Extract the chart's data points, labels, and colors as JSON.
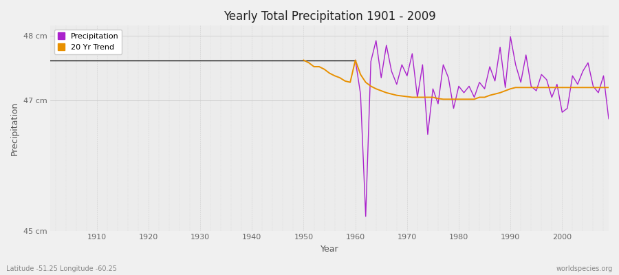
{
  "title": "Yearly Total Precipitation 1901 - 2009",
  "xlabel": "Year",
  "ylabel": "Precipitation",
  "lat_lon_label": "Latitude -51.25 Longitude -60.25",
  "watermark": "worldspecies.org",
  "ylim": [
    45.0,
    48.15
  ],
  "xlim": [
    1901,
    2009
  ],
  "yticks": [
    45.0,
    47.0,
    48.0
  ],
  "ytick_labels": [
    "45 cm",
    "47 cm",
    "48 cm"
  ],
  "xticks": [
    1910,
    1920,
    1930,
    1940,
    1950,
    1960,
    1970,
    1980,
    1990,
    2000
  ],
  "fig_bg_color": "#f0f0f0",
  "plot_bg_color": "#ececec",
  "precip_color_early": "#111111",
  "precip_color_late": "#aa22cc",
  "trend_color": "#e89000",
  "precip_linewidth": 1.0,
  "trend_linewidth": 1.4,
  "years_early": [
    1901,
    1902,
    1903,
    1904,
    1905,
    1906,
    1907,
    1908,
    1909,
    1910,
    1911,
    1912,
    1913,
    1914,
    1915,
    1916,
    1917,
    1918,
    1919,
    1920,
    1921,
    1922,
    1923,
    1924,
    1925,
    1926,
    1927,
    1928,
    1929,
    1930,
    1931,
    1932,
    1933,
    1934,
    1935,
    1936,
    1937,
    1938,
    1939,
    1940,
    1941,
    1942,
    1943,
    1944,
    1945,
    1946,
    1947,
    1948,
    1949,
    1950,
    1951,
    1952,
    1953,
    1954,
    1955,
    1956,
    1957,
    1958,
    1959,
    1960
  ],
  "precip_early": [
    47.62,
    47.62,
    47.62,
    47.62,
    47.62,
    47.62,
    47.62,
    47.62,
    47.62,
    47.62,
    47.62,
    47.62,
    47.62,
    47.62,
    47.62,
    47.62,
    47.62,
    47.62,
    47.62,
    47.62,
    47.62,
    47.62,
    47.62,
    47.62,
    47.62,
    47.62,
    47.62,
    47.62,
    47.62,
    47.62,
    47.62,
    47.62,
    47.62,
    47.62,
    47.62,
    47.62,
    47.62,
    47.62,
    47.62,
    47.62,
    47.62,
    47.62,
    47.62,
    47.62,
    47.62,
    47.62,
    47.62,
    47.62,
    47.62,
    47.62,
    47.62,
    47.62,
    47.62,
    47.62,
    47.62,
    47.62,
    47.62,
    47.62,
    47.62,
    47.62
  ],
  "years_late": [
    1960,
    1961,
    1962,
    1963,
    1964,
    1965,
    1966,
    1967,
    1968,
    1969,
    1970,
    1971,
    1972,
    1973,
    1974,
    1975,
    1976,
    1977,
    1978,
    1979,
    1980,
    1981,
    1982,
    1983,
    1984,
    1985,
    1986,
    1987,
    1988,
    1989,
    1990,
    1991,
    1992,
    1993,
    1994,
    1995,
    1996,
    1997,
    1998,
    1999,
    2000,
    2001,
    2002,
    2003,
    2004,
    2005,
    2006,
    2007,
    2008,
    2009
  ],
  "precip_late": [
    47.62,
    47.1,
    45.22,
    47.6,
    47.92,
    47.35,
    47.85,
    47.45,
    47.25,
    47.55,
    47.38,
    47.72,
    47.05,
    47.55,
    46.48,
    47.18,
    46.95,
    47.55,
    47.35,
    46.88,
    47.22,
    47.12,
    47.22,
    47.05,
    47.28,
    47.18,
    47.52,
    47.3,
    47.82,
    47.2,
    47.98,
    47.55,
    47.28,
    47.7,
    47.22,
    47.15,
    47.4,
    47.32,
    47.05,
    47.25,
    46.82,
    46.88,
    47.38,
    47.25,
    47.45,
    47.58,
    47.22,
    47.12,
    47.38,
    46.72
  ],
  "trend_years": [
    1950,
    1951,
    1952,
    1953,
    1954,
    1955,
    1956,
    1957,
    1958,
    1959,
    1960,
    1961,
    1962,
    1963,
    1964,
    1965,
    1966,
    1967,
    1968,
    1969,
    1970,
    1971,
    1972,
    1973,
    1974,
    1975,
    1976,
    1977,
    1978,
    1979,
    1980,
    1981,
    1982,
    1983,
    1984,
    1985,
    1986,
    1987,
    1988,
    1989,
    1990,
    1991,
    1992,
    1993,
    1994,
    1995,
    1996,
    1997,
    1998,
    1999,
    2000,
    2001,
    2002,
    2003,
    2004,
    2005,
    2006,
    2007,
    2008,
    2009
  ],
  "trend_vals": [
    47.62,
    47.58,
    47.52,
    47.52,
    47.48,
    47.42,
    47.38,
    47.35,
    47.3,
    47.28,
    47.62,
    47.4,
    47.28,
    47.22,
    47.18,
    47.15,
    47.12,
    47.1,
    47.08,
    47.07,
    47.06,
    47.05,
    47.05,
    47.05,
    47.05,
    47.05,
    47.03,
    47.02,
    47.02,
    47.02,
    47.02,
    47.02,
    47.02,
    47.02,
    47.05,
    47.05,
    47.08,
    47.1,
    47.12,
    47.15,
    47.18,
    47.2,
    47.2,
    47.2,
    47.2,
    47.2,
    47.2,
    47.2,
    47.2,
    47.2,
    47.2,
    47.2,
    47.2,
    47.2,
    47.2,
    47.2,
    47.2,
    47.2,
    47.2,
    47.2
  ]
}
